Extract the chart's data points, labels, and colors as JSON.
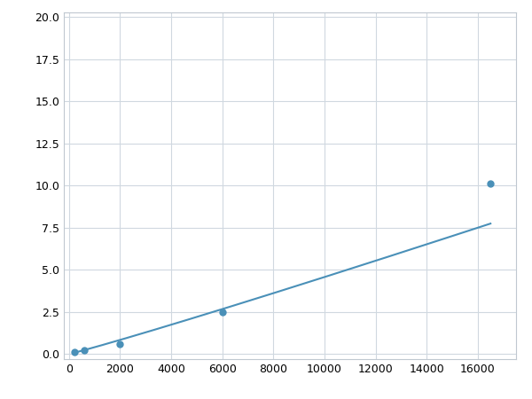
{
  "x": [
    200,
    600,
    2000,
    6000,
    16500
  ],
  "y": [
    0.1,
    0.2,
    0.6,
    2.5,
    10.1
  ],
  "line_color": "#4a90b8",
  "marker_color": "#4a90b8",
  "marker_size": 5,
  "marker_style": "o",
  "line_width": 1.5,
  "xlim": [
    -200,
    17500
  ],
  "ylim": [
    -0.3,
    20.3
  ],
  "xticks": [
    0,
    2000,
    4000,
    6000,
    8000,
    10000,
    12000,
    14000,
    16000
  ],
  "yticks": [
    0.0,
    2.5,
    5.0,
    7.5,
    10.0,
    12.5,
    15.0,
    17.5,
    20.0
  ],
  "grid_color": "#d0d8e0",
  "grid_alpha": 1.0,
  "background_color": "#ffffff",
  "figsize": [
    6.0,
    4.5
  ],
  "dpi": 100
}
